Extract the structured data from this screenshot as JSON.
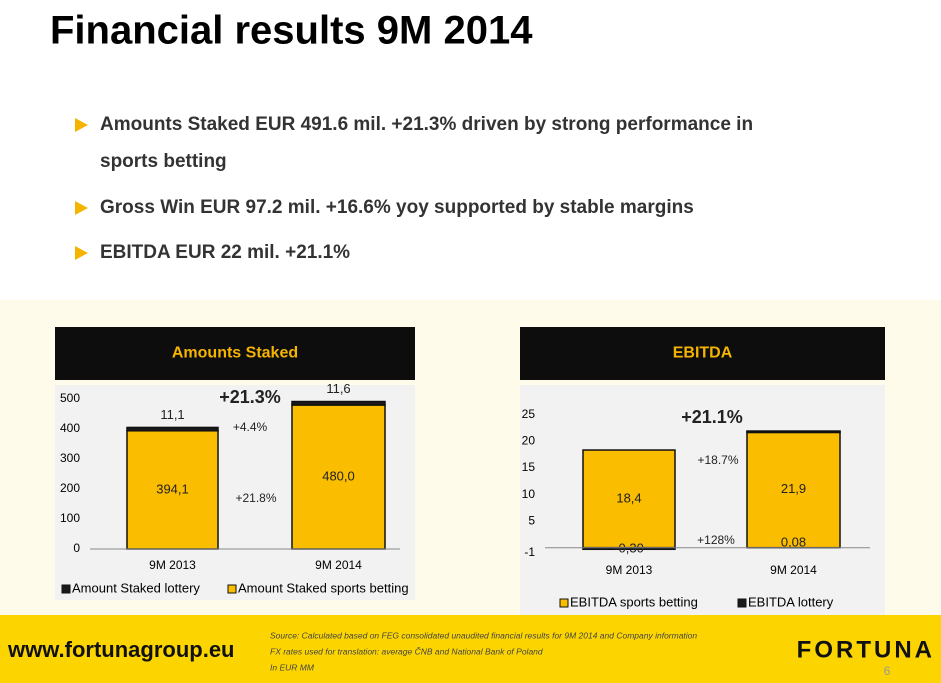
{
  "title": "Financial results 9M 2014",
  "bullets": [
    "Amounts Staked EUR 491.6 mil. +21.3% driven by strong performance in",
    "sports betting",
    "Gross Win EUR 97.2 mil. +16.6% yoy supported by stable margins",
    "EBITDA EUR 22 mil. +21.1%"
  ],
  "chart_data": [
    {
      "type": "bar",
      "stacked": true,
      "title": "Amounts Staked",
      "categories": [
        "9M 2013",
        "9M 2014"
      ],
      "series": [
        {
          "name": "Amount Staked lottery",
          "color": "#1a1a1a",
          "values": [
            11.1,
            11.6
          ],
          "value_labels": [
            "11,1",
            "11,6"
          ]
        },
        {
          "name": "Amount Staked sports betting",
          "color": "#fbbd00",
          "values": [
            394.1,
            480.0
          ],
          "value_labels": [
            "394,1",
            "480,0"
          ]
        }
      ],
      "ylim": [
        0,
        500
      ],
      "yticks": [
        0,
        100,
        200,
        300,
        400,
        500
      ],
      "annotations": [
        "+21.3%",
        "+4.4%",
        "+21.8%"
      ],
      "legend": "bottom"
    },
    {
      "type": "bar",
      "stacked": true,
      "title": "EBITDA",
      "categories": [
        "9M 2013",
        "9M 2014"
      ],
      "series": [
        {
          "name": "EBITDA sports betting",
          "color": "#fbbd00",
          "values": [
            18.4,
            21.9
          ],
          "value_labels": [
            "18,4",
            "21,9"
          ]
        },
        {
          "name": "EBITDA lottery",
          "color": "#1a1a1a",
          "values": [
            -0.3,
            0.08
          ],
          "value_labels": [
            "-0,30",
            "0,08"
          ]
        }
      ],
      "ylim": [
        -1,
        25
      ],
      "yticks": [
        -1,
        5,
        10,
        15,
        20,
        25
      ],
      "annotations": [
        "+21.1%",
        "+18.7%",
        "+128%"
      ],
      "legend": "bottom"
    }
  ],
  "footer": {
    "url": "www.fortunagroup.eu",
    "source": [
      "Source: Calculated based on FEG consolidated unaudited financial results for 9M 2014 and Company information",
      "FX rates used for translation: average ČNB and National Bank of Poland",
      "In EUR MM"
    ],
    "logo": "FORTUNA",
    "page_number": "6"
  }
}
